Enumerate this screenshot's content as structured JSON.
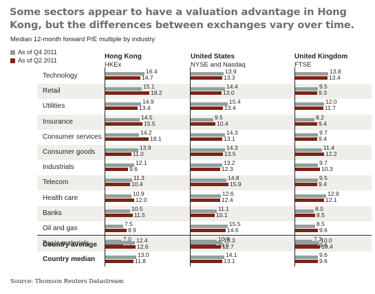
{
  "title": "Some sectors appear to have a valuation advantage in Hong Kong, but the differences between exchanges vary over time.",
  "subtitle": "Median 12-month forward P/E multiple by industry",
  "source": "Source: Thomson Reuters Datastream",
  "chart_data": {
    "type": "bar",
    "orientation": "horizontal",
    "series_names": [
      "As of Q4 2011",
      "As of Q2 2011"
    ],
    "colors": {
      "q4_2011": "#8fa19f",
      "q2_2011": "#7b2417"
    },
    "countries": [
      {
        "name": "Hong Kong",
        "exchange": "HKEx"
      },
      {
        "name": "United States",
        "exchange": "NYSE and Nasdaq"
      },
      {
        "name": "United Kingdom",
        "exchange": "FTSE"
      }
    ],
    "categories": [
      {
        "name": "Technology",
        "values": [
          [
            16.4,
            14.7
          ],
          [
            13.9,
            13.3
          ],
          [
            13.8,
            13.4
          ]
        ]
      },
      {
        "name": "Retail",
        "values": [
          [
            15.1,
            18.2
          ],
          [
            14.4,
            13.0
          ],
          [
            9.5,
            9.3
          ]
        ]
      },
      {
        "name": "Utilities",
        "values": [
          [
            14.9,
            13.4
          ],
          [
            15.4,
            13.4
          ],
          [
            12.0,
            11.7
          ]
        ]
      },
      {
        "name": "Insurance",
        "values": [
          [
            14.5,
            15.5
          ],
          [
            9.5,
            10.4
          ],
          [
            8.2,
            9.4
          ]
        ]
      },
      {
        "name": "Consumer services",
        "values": [
          [
            14.2,
            18.1
          ],
          [
            14.3,
            13.1
          ],
          [
            9.7,
            9.4
          ]
        ]
      },
      {
        "name": "Consumer goods",
        "values": [
          [
            13.9,
            11.0
          ],
          [
            14.3,
            13.5
          ],
          [
            11.4,
            12.2
          ]
        ]
      },
      {
        "name": "Industrials",
        "values": [
          [
            12.1,
            9.6
          ],
          [
            13.2,
            12.3
          ],
          [
            9.7,
            10.3
          ]
        ]
      },
      {
        "name": "Telecom",
        "values": [
          [
            11.3,
            10.4
          ],
          [
            14.8,
            15.9
          ],
          [
            9.5,
            9.4
          ]
        ]
      },
      {
        "name": "Health care",
        "values": [
          [
            10.9,
            12.0
          ],
          [
            12.6,
            12.4
          ],
          [
            12.9,
            12.1
          ]
        ]
      },
      {
        "name": "Banks",
        "values": [
          [
            10.5,
            11.5
          ],
          [
            11.1,
            10.1
          ],
          [
            8.0,
            8.5
          ]
        ]
      },
      {
        "name": "Oil and gas",
        "values": [
          [
            7.5,
            8.9
          ],
          [
            15.5,
            14.6
          ],
          [
            8.5,
            9.6
          ]
        ]
      },
      {
        "name": "Basic materials",
        "values": [
          [
            7.0,
            7.5
          ],
          [
            10.9,
            10.6
          ],
          [
            7.3,
            9.6
          ]
        ]
      }
    ],
    "summary": [
      {
        "name": "Country average",
        "values": [
          [
            12.4,
            12.6
          ],
          [
            13.3,
            12.7
          ],
          [
            10.0,
            10.4
          ]
        ]
      },
      {
        "name": "Country median",
        "values": [
          [
            13.0,
            11.8
          ],
          [
            14.1,
            13.1
          ],
          [
            9.6,
            9.6
          ]
        ]
      }
    ]
  }
}
